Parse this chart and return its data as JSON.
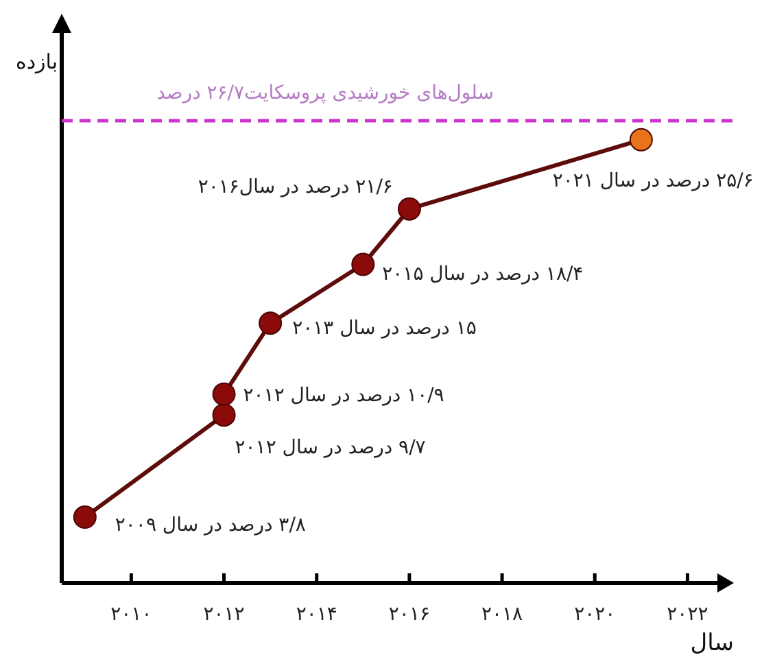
{
  "chart_data": {
    "type": "line",
    "xlabel": "سال",
    "ylabel": "بازده",
    "x": [
      2009,
      2012,
      2012,
      2013,
      2015,
      2016,
      2021
    ],
    "series": [
      {
        "color": "#5e0b0b",
        "colors": [
          "#8b0a0a",
          "#8b0a0a",
          "#8b0a0a",
          "#8b0a0a",
          "#8b0a0a",
          "#8b0a0a",
          "#e8731a"
        ],
        "values": [
          3.8,
          9.7,
          10.9,
          15,
          18.4,
          21.6,
          25.6
        ],
        "value_labels": [
          "۳/۸ درصد در سال ۲۰۰۹",
          "۹/۷ درصد در سال ۲۰۱۲",
          "۱۰/۹ درصد در سال ۲۰۱۲",
          "۱۵ درصد در سال ۲۰۱۳",
          "۱۸/۴ درصد در سال ۲۰۱۵",
          "۲۱/۶ درصد در سال۲۰۱۶",
          "۲۵/۶ درصد در سال ۲۰۲۱"
        ]
      }
    ],
    "xlim": [
      2008.5,
      2023
    ],
    "xticks": [
      {
        "value": 2010,
        "label": "۲۰۱۰"
      },
      {
        "value": 2012,
        "label": "۲۰۱۲"
      },
      {
        "value": 2014,
        "label": "۲۰۱۴"
      },
      {
        "value": 2016,
        "label": "۲۰۱۶"
      },
      {
        "value": 2018,
        "label": "۲۰۱۸"
      },
      {
        "value": 2020,
        "label": "۲۰۲۰"
      },
      {
        "value": 2022,
        "label": "۲۰۲۲"
      }
    ],
    "ref_lines": [
      {
        "axis": "y",
        "value": 26.7,
        "label": "سلول‌های خورشیدی پروسکایت۲۶/۷ درصد",
        "color": "#cc33cc",
        "line_style": "dashed"
      }
    ],
    "marker": "circle",
    "line_style": "solid"
  }
}
